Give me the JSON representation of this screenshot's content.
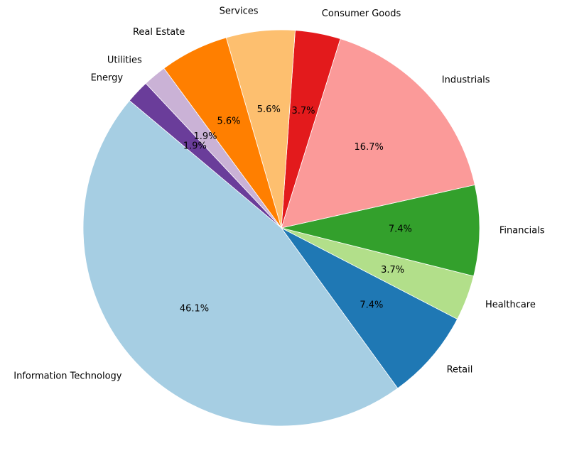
{
  "chart_data": {
    "type": "pie",
    "title": "",
    "start_angle_deg": 140,
    "direction": "counterclockwise",
    "slices": [
      {
        "label": "Information Technology",
        "percent": 46.1,
        "pct_label": "46.1%",
        "color": "#a6cee3"
      },
      {
        "label": "Retail",
        "percent": 7.4,
        "pct_label": "7.4%",
        "color": "#1f78b4"
      },
      {
        "label": "Healthcare",
        "percent": 3.7,
        "pct_label": "3.7%",
        "color": "#b2df8a"
      },
      {
        "label": "Financials",
        "percent": 7.4,
        "pct_label": "7.4%",
        "color": "#33a02c"
      },
      {
        "label": "Industrials",
        "percent": 16.7,
        "pct_label": "16.7%",
        "color": "#fb9a99"
      },
      {
        "label": "Consumer Goods",
        "percent": 3.7,
        "pct_label": "3.7%",
        "color": "#e31a1c"
      },
      {
        "label": "Services",
        "percent": 5.6,
        "pct_label": "5.6%",
        "color": "#fdbf6f"
      },
      {
        "label": "Real Estate",
        "percent": 5.6,
        "pct_label": "5.6%",
        "color": "#ff7f00"
      },
      {
        "label": "Utilities",
        "percent": 1.9,
        "pct_label": "1.9%",
        "color": "#cab2d6"
      },
      {
        "label": "Energy",
        "percent": 1.9,
        "pct_label": "1.9%",
        "color": "#6a3d9a"
      }
    ]
  }
}
